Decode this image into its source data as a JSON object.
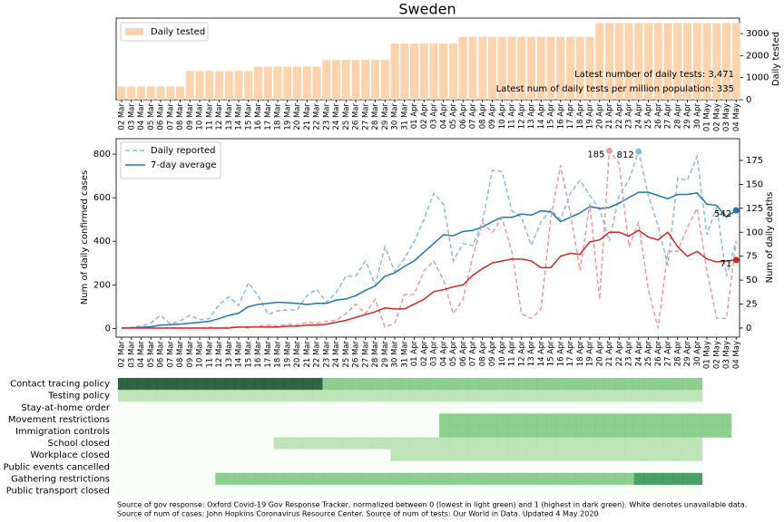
{
  "chart_data": [
    {
      "type": "bar",
      "title": "Sweden",
      "ylabel": "Daily tested",
      "y_axis": "right",
      "legend": "upper left",
      "annotations": [
        "Latest number of daily tests: 3,471",
        "Latest num of daily tests per million population: 335"
      ],
      "ylim": [
        0,
        3700
      ],
      "yticks": [
        0,
        1000,
        2000,
        3000
      ],
      "categories": [
        "02 Mar",
        "03 Mar",
        "04 Mar",
        "05 Mar",
        "06 Mar",
        "07 Mar",
        "08 Mar",
        "09 Mar",
        "10 Mar",
        "11 Mar",
        "12 Mar",
        "13 Mar",
        "14 Mar",
        "15 Mar",
        "16 Mar",
        "17 Mar",
        "18 Mar",
        "19 Mar",
        "20 Mar",
        "21 Mar",
        "22 Mar",
        "23 Mar",
        "24 Mar",
        "25 Mar",
        "26 Mar",
        "27 Mar",
        "28 Mar",
        "29 Mar",
        "30 Mar",
        "31 Mar",
        "01 Apr",
        "02 Apr",
        "03 Apr",
        "04 Apr",
        "05 Apr",
        "06 Apr",
        "07 Apr",
        "08 Apr",
        "09 Apr",
        "10 Apr",
        "11 Apr",
        "12 Apr",
        "13 Apr",
        "14 Apr",
        "15 Apr",
        "16 Apr",
        "17 Apr",
        "18 Apr",
        "19 Apr",
        "20 Apr",
        "21 Apr",
        "22 Apr",
        "23 Apr",
        "24 Apr",
        "25 Apr",
        "26 Apr",
        "27 Apr",
        "28 Apr",
        "29 Apr",
        "30 Apr",
        "01 May",
        "02 May",
        "03 May",
        "04 May"
      ],
      "series": [
        {
          "name": "Daily tested",
          "color": "#fdd3ad",
          "values": [
            600,
            600,
            600,
            600,
            600,
            600,
            600,
            1300,
            1300,
            1300,
            1300,
            1300,
            1300,
            1300,
            1500,
            1500,
            1500,
            1500,
            1500,
            1500,
            1500,
            1800,
            1800,
            1800,
            1800,
            1800,
            1800,
            1800,
            2550,
            2550,
            2550,
            2550,
            2550,
            2550,
            2550,
            2850,
            2850,
            2850,
            2850,
            2850,
            2850,
            2850,
            2850,
            2850,
            2850,
            2850,
            2850,
            2850,
            2850,
            3471,
            3471,
            3471,
            3471,
            3471,
            3471,
            3471,
            3471,
            3471,
            3471,
            3471,
            3471,
            3471,
            3471,
            3471
          ]
        }
      ]
    },
    {
      "type": "line",
      "ylabel": "Num of daily confirmed cases",
      "y2label": "Num of daily deaths",
      "ylabel_color": "#1f77b4",
      "y2label_color": "#d62728",
      "legend": "upper left",
      "ylim": [
        -40,
        871
      ],
      "yticks": [
        0,
        200,
        400,
        600,
        800
      ],
      "y2lim": [
        -9.5,
        197.7
      ],
      "y2ticks": [
        0,
        25,
        50,
        75,
        100,
        125,
        150,
        175
      ],
      "categories": [
        "02 Mar",
        "03 Mar",
        "04 Mar",
        "05 Mar",
        "06 Mar",
        "07 Mar",
        "08 Mar",
        "09 Mar",
        "10 Mar",
        "11 Mar",
        "12 Mar",
        "13 Mar",
        "14 Mar",
        "15 Mar",
        "16 Mar",
        "17 Mar",
        "18 Mar",
        "19 Mar",
        "20 Mar",
        "21 Mar",
        "22 Mar",
        "23 Mar",
        "24 Mar",
        "25 Mar",
        "26 Mar",
        "27 Mar",
        "28 Mar",
        "29 Mar",
        "30 Mar",
        "31 Mar",
        "01 Apr",
        "02 Apr",
        "03 Apr",
        "04 Apr",
        "05 Apr",
        "06 Apr",
        "07 Apr",
        "08 Apr",
        "09 Apr",
        "10 Apr",
        "11 Apr",
        "12 Apr",
        "13 Apr",
        "14 Apr",
        "15 Apr",
        "16 Apr",
        "17 Apr",
        "18 Apr",
        "19 Apr",
        "20 Apr",
        "21 Apr",
        "22 Apr",
        "23 Apr",
        "24 Apr",
        "25 Apr",
        "26 Apr",
        "27 Apr",
        "28 Apr",
        "29 Apr",
        "30 Apr",
        "01 May",
        "02 May",
        "03 May",
        "04 May"
      ],
      "series": [
        {
          "name": "Daily reported",
          "color": "#8dbbe0",
          "linestyle": "dashed",
          "annotate": "max",
          "values": [
            2,
            5,
            10,
            25,
            60,
            20,
            35,
            60,
            40,
            45,
            110,
            145,
            105,
            210,
            150,
            65,
            80,
            85,
            85,
            150,
            180,
            120,
            165,
            240,
            240,
            310,
            200,
            375,
            260,
            320,
            400,
            500,
            620,
            570,
            310,
            390,
            380,
            490,
            725,
            720,
            540,
            510,
            380,
            490,
            545,
            500,
            620,
            680,
            610,
            550,
            400,
            610,
            680,
            812,
            610,
            470,
            290,
            690,
            680,
            790,
            430,
            560,
            240,
            400
          ]
        },
        {
          "name": "7-day average",
          "color": "#1f77b4",
          "linestyle": "solid",
          "annotate": "last",
          "values": [
            2,
            3,
            5,
            8,
            15,
            17,
            20,
            24,
            28,
            33,
            45,
            60,
            70,
            100,
            110,
            115,
            120,
            118,
            115,
            110,
            115,
            115,
            130,
            135,
            150,
            175,
            195,
            240,
            255,
            285,
            310,
            350,
            390,
            430,
            425,
            445,
            450,
            465,
            490,
            510,
            510,
            525,
            520,
            540,
            535,
            490,
            510,
            530,
            560,
            550,
            555,
            575,
            600,
            625,
            625,
            610,
            595,
            615,
            615,
            622,
            570,
            565,
            510,
            542
          ]
        },
        {
          "color": "#ee9a9a",
          "linestyle": "dashed",
          "axis": "y2",
          "annotate": "max",
          "values": [
            0,
            0,
            0,
            0,
            0,
            0,
            0,
            0,
            0,
            1,
            0,
            1,
            1,
            0,
            2,
            3,
            2,
            4,
            3,
            6,
            5,
            7,
            8,
            15,
            25,
            15,
            30,
            1,
            5,
            35,
            35,
            60,
            70,
            50,
            15,
            30,
            75,
            110,
            100,
            115,
            80,
            15,
            10,
            20,
            115,
            170,
            120,
            60,
            130,
            30,
            185,
            172,
            85,
            110,
            40,
            0,
            80,
            80,
            105,
            125,
            60,
            10,
            10,
            90
          ]
        },
        {
          "color": "#d62728",
          "linestyle": "solid",
          "axis": "y2",
          "annotate": "last",
          "values": [
            0,
            0,
            0,
            0,
            0,
            0,
            0,
            0,
            0,
            0,
            0,
            0,
            1,
            1,
            1,
            1,
            1,
            2,
            2,
            3,
            3,
            4,
            6,
            8,
            11,
            14,
            17,
            21,
            20,
            20,
            25,
            30,
            38,
            40,
            43,
            45,
            55,
            62,
            68,
            70,
            72,
            72,
            70,
            63,
            63,
            75,
            78,
            77,
            90,
            92,
            100,
            100,
            96,
            102,
            95,
            92,
            100,
            85,
            75,
            80,
            72,
            69,
            70,
            71
          ]
        }
      ]
    },
    {
      "type": "heatmap",
      "colormap": [
        "#f7fcf5",
        "#e5f5e0",
        "#c7e9c0",
        "#a1d99b",
        "#74c476",
        "#41ab5d",
        "#238b45",
        "#006d2c",
        "#00441b"
      ],
      "rows": [
        "Contact tracing policy",
        "Testing policy",
        "Stay-at-home order",
        "Movement restrictions",
        "Immigration controls",
        "School closed",
        "Workplace closed",
        "Public events cancelled",
        "Gathering restrictions",
        "Public transport closed"
      ],
      "values": [
        [
          1,
          1,
          1,
          1,
          1,
          1,
          1,
          1,
          1,
          1,
          1,
          1,
          1,
          1,
          1,
          1,
          1,
          1,
          1,
          1,
          1,
          0.5,
          0.5,
          0.5,
          0.5,
          0.5,
          0.5,
          0.5,
          0.5,
          0.5,
          0.5,
          0.5,
          0.5,
          0.5,
          0.5,
          0.5,
          0.5,
          0.5,
          0.5,
          0.5,
          0.5,
          0.5,
          0.5,
          0.5,
          0.5,
          0.5,
          0.5,
          0.5,
          0.5,
          0.5,
          0.5,
          0.5,
          0.5,
          0.5,
          0.5,
          0.5,
          0.5,
          0.5,
          0.5,
          0.5,
          null,
          null,
          null,
          null
        ],
        [
          0.33,
          0.33,
          0.33,
          0.33,
          0.33,
          0.33,
          0.33,
          0.33,
          0.33,
          0.33,
          0.33,
          0.33,
          0.33,
          0.33,
          0.33,
          0.33,
          0.33,
          0.33,
          0.33,
          0.33,
          0.33,
          0.33,
          0.33,
          0.33,
          0.33,
          0.33,
          0.33,
          0.33,
          0.33,
          0.33,
          0.33,
          0.33,
          0.33,
          0.33,
          0.33,
          0.33,
          0.33,
          0.33,
          0.33,
          0.33,
          0.33,
          0.33,
          0.33,
          0.33,
          0.33,
          0.33,
          0.33,
          0.33,
          0.33,
          0.33,
          0.33,
          0.33,
          0.33,
          0.33,
          0.33,
          0.33,
          0.33,
          0.33,
          0.33,
          0.33,
          null,
          null,
          null,
          null
        ],
        [
          0,
          0,
          0,
          0,
          0,
          0,
          0,
          0,
          0,
          0,
          0,
          0,
          0,
          0,
          0,
          0,
          0,
          0,
          0,
          0,
          0,
          0,
          0,
          0,
          0,
          0,
          0,
          0,
          0,
          0,
          0,
          0,
          0,
          0,
          0,
          0,
          0,
          0,
          0,
          0,
          0,
          0,
          0,
          0,
          0,
          0,
          0,
          0,
          0,
          0,
          0,
          0,
          0,
          0,
          0,
          0,
          0,
          0,
          0,
          0,
          null,
          null,
          null,
          null
        ],
        [
          0,
          0,
          0,
          0,
          0,
          0,
          0,
          0,
          0,
          0,
          0,
          0,
          0,
          0,
          0,
          0,
          0,
          0,
          0,
          0,
          0,
          0,
          0,
          0,
          0,
          0,
          0,
          0,
          0,
          0,
          0,
          0,
          0,
          0.5,
          0.5,
          0.5,
          0.5,
          0.5,
          0.5,
          0.5,
          0.5,
          0.5,
          0.5,
          0.5,
          0.5,
          0.5,
          0.5,
          0.5,
          0.5,
          0.5,
          0.5,
          0.5,
          0.5,
          0.5,
          0.5,
          0.5,
          0.5,
          0.5,
          0.5,
          0.5,
          0.5,
          0.5,
          0.5,
          null,
          null,
          null,
          null
        ],
        [
          0,
          0,
          0,
          0,
          0,
          0,
          0,
          0,
          0,
          0,
          0,
          0,
          0,
          0,
          0,
          0,
          0,
          0,
          0,
          0,
          0,
          0,
          0,
          0,
          0,
          0,
          0,
          0,
          0,
          0,
          0,
          0,
          0,
          0.5,
          0.5,
          0.5,
          0.5,
          0.5,
          0.5,
          0.5,
          0.5,
          0.5,
          0.5,
          0.5,
          0.5,
          0.5,
          0.5,
          0.5,
          0.5,
          0.5,
          0.5,
          0.5,
          0.5,
          0.5,
          0.5,
          0.5,
          0.5,
          0.5,
          0.5,
          0.5,
          0.5,
          0.5,
          0.5,
          null,
          null,
          null,
          null
        ],
        [
          0,
          0,
          0,
          0,
          0,
          0,
          0,
          0,
          0,
          0,
          0,
          0,
          0,
          0,
          0,
          0,
          0.33,
          0.33,
          0.33,
          0.33,
          0.33,
          0.33,
          0.33,
          0.33,
          0.33,
          0.33,
          0.33,
          0.33,
          0.33,
          0.33,
          0.33,
          0.33,
          0.33,
          0.33,
          0.33,
          0.33,
          0.33,
          0.33,
          0.33,
          0.33,
          0.33,
          0.33,
          0.33,
          0.33,
          0.33,
          0.33,
          0.33,
          0.33,
          0.33,
          0.33,
          0.33,
          0.33,
          0.33,
          0.33,
          0.33,
          0.33,
          0.33,
          0.33,
          0.33,
          0.33,
          null,
          null,
          null,
          null
        ],
        [
          0,
          0,
          0,
          0,
          0,
          0,
          0,
          0,
          0,
          0,
          0,
          0,
          0,
          0,
          0,
          0,
          0,
          0,
          0,
          0,
          0,
          0,
          0,
          0,
          0,
          0,
          0,
          0,
          0.33,
          0.33,
          0.33,
          0.33,
          0.33,
          0.33,
          0.33,
          0.33,
          0.33,
          0.33,
          0.33,
          0.33,
          0.33,
          0.33,
          0.33,
          0.33,
          0.33,
          0.33,
          0.33,
          0.33,
          0.33,
          0.33,
          0.33,
          0.33,
          0.33,
          0.33,
          0.33,
          0.33,
          0.33,
          0.33,
          0.33,
          0.33,
          null,
          null,
          null,
          null
        ],
        [
          0,
          0,
          0,
          0,
          0,
          0,
          0,
          0,
          0,
          0,
          0,
          0,
          0,
          0,
          0,
          0,
          0,
          0,
          0,
          0,
          0,
          0,
          0,
          0,
          0,
          0,
          0,
          0,
          0,
          0,
          0,
          0,
          0,
          0,
          0,
          0,
          0,
          0,
          0,
          0,
          0,
          0,
          0,
          0,
          0,
          0,
          0,
          0,
          0,
          0,
          0,
          0,
          0,
          0,
          0,
          0,
          0,
          0,
          0,
          0,
          null,
          null,
          null,
          null
        ],
        [
          0,
          0,
          0,
          0,
          0,
          0,
          0,
          0,
          0,
          0,
          0.5,
          0.5,
          0.5,
          0.5,
          0.5,
          0.5,
          0.5,
          0.5,
          0.5,
          0.5,
          0.5,
          0.5,
          0.5,
          0.5,
          0.5,
          0.5,
          0.5,
          0.5,
          0.5,
          0.5,
          0.5,
          0.5,
          0.5,
          0.5,
          0.5,
          0.5,
          0.5,
          0.5,
          0.5,
          0.5,
          0.5,
          0.5,
          0.5,
          0.5,
          0.5,
          0.5,
          0.5,
          0.5,
          0.5,
          0.5,
          0.5,
          0.5,
          0.5,
          0.75,
          0.75,
          0.75,
          0.75,
          0.75,
          0.75,
          0.75,
          null,
          null,
          null,
          null
        ],
        [
          0,
          0,
          0,
          0,
          0,
          0,
          0,
          0,
          0,
          0,
          0,
          0,
          0,
          0,
          0,
          0,
          0,
          0,
          0,
          0,
          0,
          0,
          0,
          0,
          0,
          0,
          0,
          0,
          0,
          0,
          0,
          0,
          0,
          0,
          0,
          0,
          0,
          0,
          0,
          0,
          0,
          0,
          0,
          0,
          0,
          0,
          0,
          0,
          0,
          0,
          0,
          0,
          0,
          0,
          0,
          0,
          0,
          0,
          0,
          0,
          null,
          null,
          null,
          null
        ]
      ]
    }
  ],
  "footnotes": [
    "Source of gov response: Oxford Covid-19 Gov Response Tracker, normalized between 0 (lowest in light green) and 1 (highest in dark green). White denotes unavailable data.",
    "Source of num of cases: John Hopkins Coronavirus Resource Center. Source of num of tests: Our World in Data. Updated 4 May 2020"
  ]
}
